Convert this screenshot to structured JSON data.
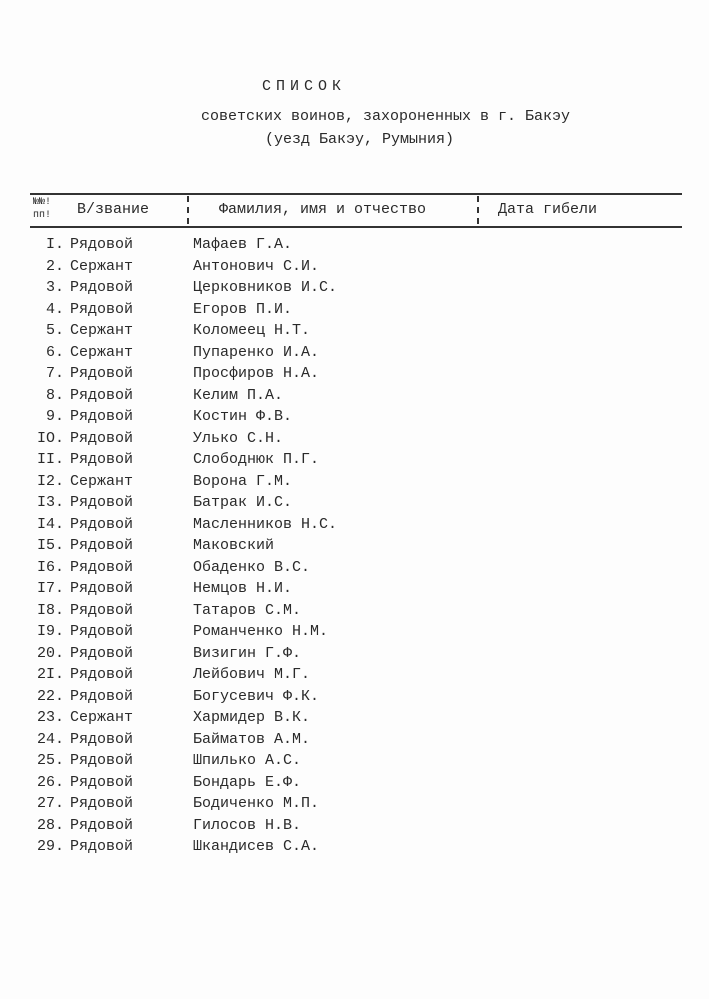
{
  "title": "СПИСОК",
  "subtitle": "советских воинов, захороненных в г. Бакэу",
  "subtitle2": "(уезд Бакэу, Румыния)",
  "headers": {
    "no": "№№!",
    "no2": "пп!",
    "rank": "В/звание",
    "name": "Фамилия, имя и отчество",
    "date": "Дата гибели"
  },
  "rows": [
    {
      "n": "I.",
      "rank": "Рядовой",
      "name": "Мафаев Г.А."
    },
    {
      "n": "2.",
      "rank": "Сержант",
      "name": "Антонович С.И."
    },
    {
      "n": "3.",
      "rank": "Рядовой",
      "name": "Церковников И.С."
    },
    {
      "n": "4.",
      "rank": "Рядовой",
      "name": "Егоров П.И."
    },
    {
      "n": "5.",
      "rank": "Сержант",
      "name": "Коломеец Н.Т."
    },
    {
      "n": "6.",
      "rank": "Сержант",
      "name": "Пупаренко И.А."
    },
    {
      "n": "7.",
      "rank": "Рядовой",
      "name": "Просфиров Н.А."
    },
    {
      "n": "8.",
      "rank": "Рядовой",
      "name": "Келим П.А."
    },
    {
      "n": "9.",
      "rank": "Рядовой",
      "name": "Костин Ф.В."
    },
    {
      "n": "IO.",
      "rank": "Рядовой",
      "name": "Улько С.Н."
    },
    {
      "n": "II.",
      "rank": "Рядовой",
      "name": "Слободнюк П.Г."
    },
    {
      "n": "I2.",
      "rank": "Сержант",
      "name": "Ворона Г.М."
    },
    {
      "n": "I3.",
      "rank": "Рядовой",
      "name": "Батрак И.С."
    },
    {
      "n": "I4.",
      "rank": "Рядовой",
      "name": "Масленников Н.С."
    },
    {
      "n": "I5.",
      "rank": "Рядовой",
      "name": "Маковский"
    },
    {
      "n": "I6.",
      "rank": "Рядовой",
      "name": "Обаденко В.С."
    },
    {
      "n": "I7.",
      "rank": "Рядовой",
      "name": "Немцов Н.И."
    },
    {
      "n": "I8.",
      "rank": "Рядовой",
      "name": "Татаров С.М."
    },
    {
      "n": "I9.",
      "rank": "Рядовой",
      "name": "Романченко Н.М."
    },
    {
      "n": "20.",
      "rank": "Рядовой",
      "name": "Визигин Г.Ф."
    },
    {
      "n": "2I.",
      "rank": "Рядовой",
      "name": "Лейбович М.Г."
    },
    {
      "n": "22.",
      "rank": "Рядовой",
      "name": "Богусевич Ф.К."
    },
    {
      "n": "23.",
      "rank": "Сержант",
      "name": "Хармидер В.К."
    },
    {
      "n": "24.",
      "rank": "Рядовой",
      "name": "Байматов А.М."
    },
    {
      "n": "25.",
      "rank": "Рядовой",
      "name": "Шпилько А.С."
    },
    {
      "n": "26.",
      "rank": "Рядовой",
      "name": "Бондарь Е.Ф."
    },
    {
      "n": "27.",
      "rank": "Рядовой",
      "name": "Бодиченко М.П."
    },
    {
      "n": "28.",
      "rank": "Рядовой",
      "name": "Гилосов Н.В."
    },
    {
      "n": "29.",
      "rank": "Рядовой",
      "name": "Шкандисев С.А."
    }
  ]
}
